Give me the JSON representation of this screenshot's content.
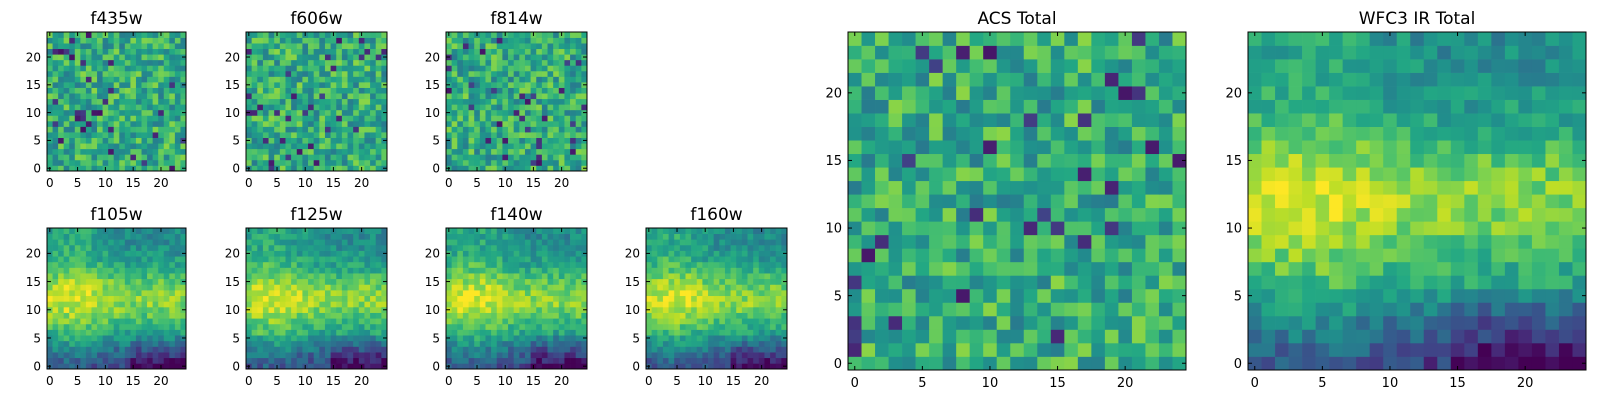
{
  "chart_data": [
    {
      "type": "heatmap",
      "title": "f435w",
      "grid_size": 25,
      "xticks": [
        0,
        5,
        10,
        15,
        20
      ],
      "yticks": [
        0,
        5,
        10,
        15,
        20
      ],
      "xlim": [
        -0.5,
        24.5
      ],
      "ylim": [
        -0.5,
        24.5
      ],
      "colormap": "viridis",
      "pattern": "noisy",
      "seed": 11
    },
    {
      "type": "heatmap",
      "title": "f606w",
      "grid_size": 25,
      "xticks": [
        0,
        5,
        10,
        15,
        20
      ],
      "yticks": [
        0,
        5,
        10,
        15,
        20
      ],
      "xlim": [
        -0.5,
        24.5
      ],
      "ylim": [
        -0.5,
        24.5
      ],
      "colormap": "viridis",
      "pattern": "noisy",
      "seed": 23
    },
    {
      "type": "heatmap",
      "title": "f814w",
      "grid_size": 25,
      "xticks": [
        0,
        5,
        10,
        15,
        20
      ],
      "yticks": [
        0,
        5,
        10,
        15,
        20
      ],
      "xlim": [
        -0.5,
        24.5
      ],
      "ylim": [
        -0.5,
        24.5
      ],
      "colormap": "viridis",
      "pattern": "noisy",
      "seed": 37
    },
    {
      "type": "heatmap",
      "title": "f105w",
      "grid_size": 25,
      "xticks": [
        0,
        5,
        10,
        15,
        20
      ],
      "yticks": [
        0,
        5,
        10,
        15,
        20
      ],
      "xlim": [
        -0.5,
        24.5
      ],
      "ylim": [
        -0.5,
        24.5
      ],
      "colormap": "viridis",
      "pattern": "smooth",
      "seed": 41
    },
    {
      "type": "heatmap",
      "title": "f125w",
      "grid_size": 25,
      "xticks": [
        0,
        5,
        10,
        15,
        20
      ],
      "yticks": [
        0,
        5,
        10,
        15,
        20
      ],
      "xlim": [
        -0.5,
        24.5
      ],
      "ylim": [
        -0.5,
        24.5
      ],
      "colormap": "viridis",
      "pattern": "smooth",
      "seed": 53
    },
    {
      "type": "heatmap",
      "title": "f140w",
      "grid_size": 25,
      "xticks": [
        0,
        5,
        10,
        15,
        20
      ],
      "yticks": [
        0,
        5,
        10,
        15,
        20
      ],
      "xlim": [
        -0.5,
        24.5
      ],
      "ylim": [
        -0.5,
        24.5
      ],
      "colormap": "viridis",
      "pattern": "smooth",
      "seed": 67
    },
    {
      "type": "heatmap",
      "title": "f160w",
      "grid_size": 25,
      "xticks": [
        0,
        5,
        10,
        15,
        20
      ],
      "yticks": [
        0,
        5,
        10,
        15,
        20
      ],
      "xlim": [
        -0.5,
        24.5
      ],
      "ylim": [
        -0.5,
        24.5
      ],
      "colormap": "viridis",
      "pattern": "smooth",
      "seed": 71
    },
    {
      "type": "heatmap",
      "title": "ACS Total",
      "grid_size": 25,
      "xticks": [
        0,
        5,
        10,
        15,
        20
      ],
      "yticks": [
        0,
        5,
        10,
        15,
        20
      ],
      "xlim": [
        -0.5,
        24.5
      ],
      "ylim": [
        -0.5,
        24.5
      ],
      "colormap": "viridis",
      "pattern": "noisy",
      "seed": 83
    },
    {
      "type": "heatmap",
      "title": "WFC3 IR Total",
      "grid_size": 25,
      "xticks": [
        0,
        5,
        10,
        15,
        20
      ],
      "yticks": [
        0,
        5,
        10,
        15,
        20
      ],
      "xlim": [
        -0.5,
        24.5
      ],
      "ylim": [
        -0.5,
        24.5
      ],
      "colormap": "viridis",
      "pattern": "smooth",
      "seed": 97
    }
  ]
}
